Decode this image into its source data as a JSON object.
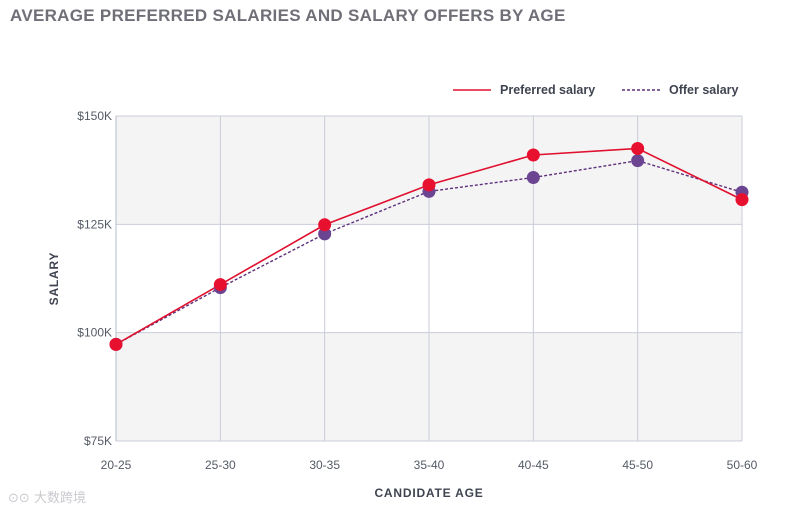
{
  "chart_data": {
    "type": "line",
    "title": "AVERAGE PREFERRED SALARIES AND SALARY OFFERS BY AGE",
    "xlabel": "CANDIDATE AGE",
    "ylabel": "SALARY",
    "categories": [
      "20-25",
      "25-30",
      "30-35",
      "35-40",
      "40-45",
      "45-50",
      "50-60"
    ],
    "ylim": [
      75000,
      150000
    ],
    "yticks": [
      75000,
      100000,
      125000,
      150000
    ],
    "ytick_labels": [
      "$75K",
      "$100K",
      "$125K",
      "$150K"
    ],
    "legend_position": "top-right",
    "series": [
      {
        "name": "Preferred salary",
        "style": "solid",
        "line_color": "#e0102e",
        "marker_color": "#e8102f",
        "values": [
          97300,
          111100,
          124900,
          134100,
          141000,
          142500,
          130700
        ]
      },
      {
        "name": "Offer salary",
        "style": "dotted",
        "line_color": "#5e2f7a",
        "marker_color": "#6b4592",
        "values": [
          97300,
          110400,
          122800,
          132600,
          135800,
          139700,
          132400
        ]
      }
    ]
  },
  "watermark": "大数跨境"
}
